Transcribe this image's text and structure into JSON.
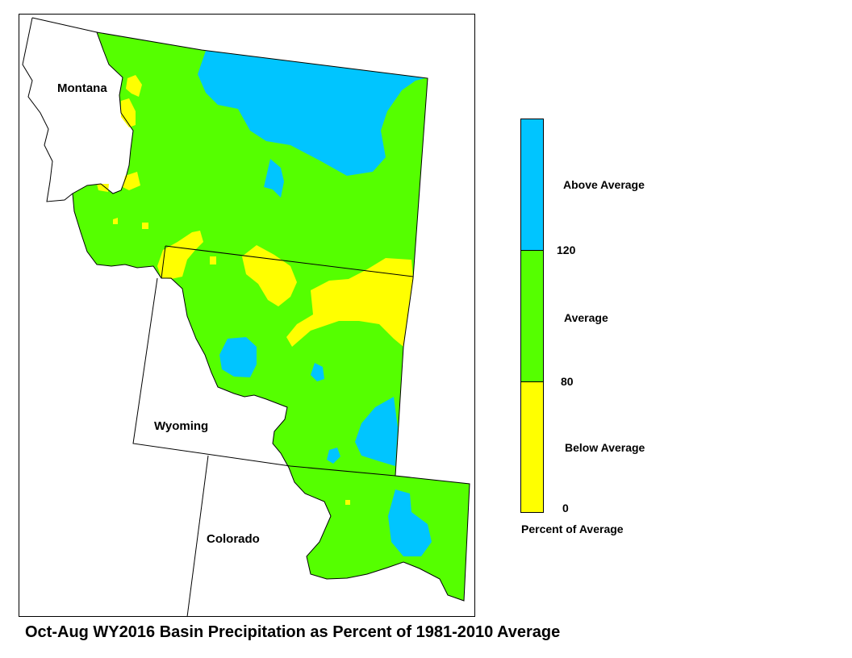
{
  "map": {
    "states": [
      {
        "name": "Montana"
      },
      {
        "name": "Wyoming"
      },
      {
        "name": "Colorado"
      }
    ],
    "colors": {
      "above": "#00c5ff",
      "average": "#55ff00",
      "below": "#ffff00",
      "outline": "#000000",
      "background": "#ffffff"
    }
  },
  "legend": {
    "title": "Percent of Average",
    "classes": [
      {
        "label": "Above Average",
        "color": "#00c5ff"
      },
      {
        "label": "Average",
        "color": "#55ff00"
      },
      {
        "label": "Below Average",
        "color": "#ffff00"
      }
    ],
    "breaks": [
      "120",
      "80",
      "0"
    ]
  },
  "caption": "Oct-Aug WY2016 Basin Precipitation as Percent of 1981-2010 Average"
}
